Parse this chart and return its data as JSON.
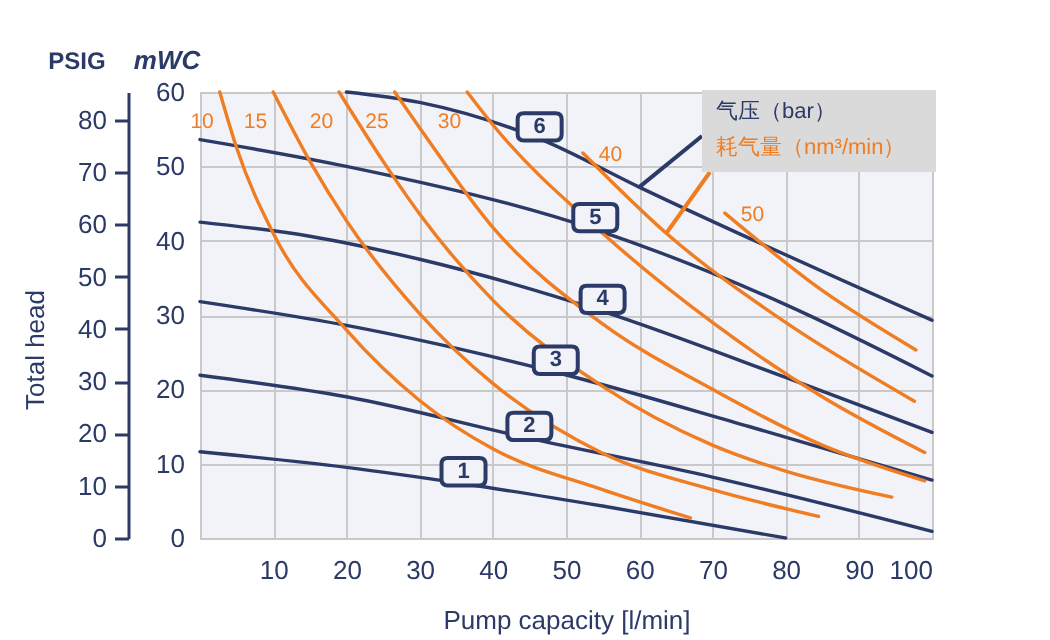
{
  "chart_data": {
    "type": "line",
    "xlabel": "Pump capacity [l/min]",
    "ylabel": "mWC",
    "y2label": "PSIG",
    "xlim": [
      0,
      100
    ],
    "xticks": [
      10,
      20,
      30,
      40,
      50,
      60,
      70,
      80,
      90,
      100
    ],
    "ylim": [
      0,
      60
    ],
    "yticks": [
      0,
      10,
      20,
      30,
      40,
      50,
      60
    ],
    "y2lim": [
      0,
      85.3
    ],
    "y2ticks": [
      0,
      10,
      20,
      30,
      40,
      50,
      60,
      70,
      80
    ],
    "grid": true,
    "annotations": [
      "Total head",
      {
        "text": "气压（bar）",
        "x": 60,
        "y": 47.2
      },
      {
        "text": "耗气量（nm³/min）",
        "x": 63.7,
        "y": 41
      }
    ],
    "series": [
      {
        "name": "1",
        "color": "#2b3a67",
        "x": [
          0,
          20,
          36,
          55,
          80
        ],
        "values": [
          11.6,
          9.5,
          7.3,
          4.3,
          0
        ]
      },
      {
        "name": "2",
        "color": "#2b3a67",
        "x": [
          0,
          20,
          45,
          70,
          100
        ],
        "values": [
          21.9,
          19,
          13.4,
          8.2,
          0.9
        ]
      },
      {
        "name": "3",
        "color": "#2b3a67",
        "x": [
          0,
          20,
          48.6,
          75,
          100
        ],
        "values": [
          31.8,
          28.6,
          22.3,
          15,
          7.8
        ]
      },
      {
        "name": "4",
        "color": "#2b3a67",
        "x": [
          0,
          15,
          30,
          55,
          80,
          100
        ],
        "values": [
          42.5,
          40.6,
          37.5,
          30.5,
          21.6,
          14.2
        ]
      },
      {
        "name": "5",
        "color": "#2b3a67",
        "x": [
          0,
          20,
          54,
          80,
          100
        ],
        "values": [
          53.6,
          50,
          41.5,
          31.4,
          21.8
        ]
      },
      {
        "name": "6",
        "color": "#2b3a67",
        "x": [
          20,
          30,
          46.4,
          60,
          100
        ],
        "values": [
          60,
          58.6,
          53.7,
          47.2,
          29.3
        ]
      },
      {
        "name": "10",
        "color": "#f07d22",
        "x": [
          2.7,
          5,
          10,
          20,
          30,
          40,
          55,
          67
        ],
        "values": [
          60,
          52.5,
          41,
          28,
          18.5,
          12,
          6.5,
          2.7
        ]
      },
      {
        "name": "15",
        "color": "#f07d22",
        "x": [
          10,
          15,
          20,
          30,
          40,
          55,
          70,
          84.5
        ],
        "values": [
          60,
          50.7,
          42.7,
          30.2,
          20.8,
          11.4,
          6.5,
          2.9
        ]
      },
      {
        "name": "20",
        "color": "#f07d22",
        "x": [
          19,
          25,
          30,
          40,
          55,
          70,
          80,
          94.5
        ],
        "values": [
          60,
          50.7,
          43.6,
          32,
          20.4,
          12.5,
          9,
          5.5
        ]
      },
      {
        "name": "25",
        "color": "#f07d22",
        "x": [
          26.6,
          30,
          40,
          55,
          70,
          85,
          99
        ],
        "values": [
          60,
          55.2,
          41.8,
          28.8,
          20,
          12.5,
          7.7
        ]
      },
      {
        "name": "30",
        "color": "#f07d22",
        "x": [
          36.5,
          40,
          55,
          70,
          85,
          99
        ],
        "values": [
          60,
          55.6,
          41,
          29,
          19,
          11.5
        ]
      },
      {
        "name": "40",
        "color": "#f07d22",
        "x": [
          52.3,
          63.7,
          80,
          97.6
        ],
        "values": [
          51.8,
          41,
          29,
          18.4
        ]
      },
      {
        "name": "50",
        "color": "#f07d22",
        "x": [
          71.7,
          85,
          97.8
        ],
        "values": [
          43.7,
          33.3,
          25.3
        ]
      }
    ]
  }
}
